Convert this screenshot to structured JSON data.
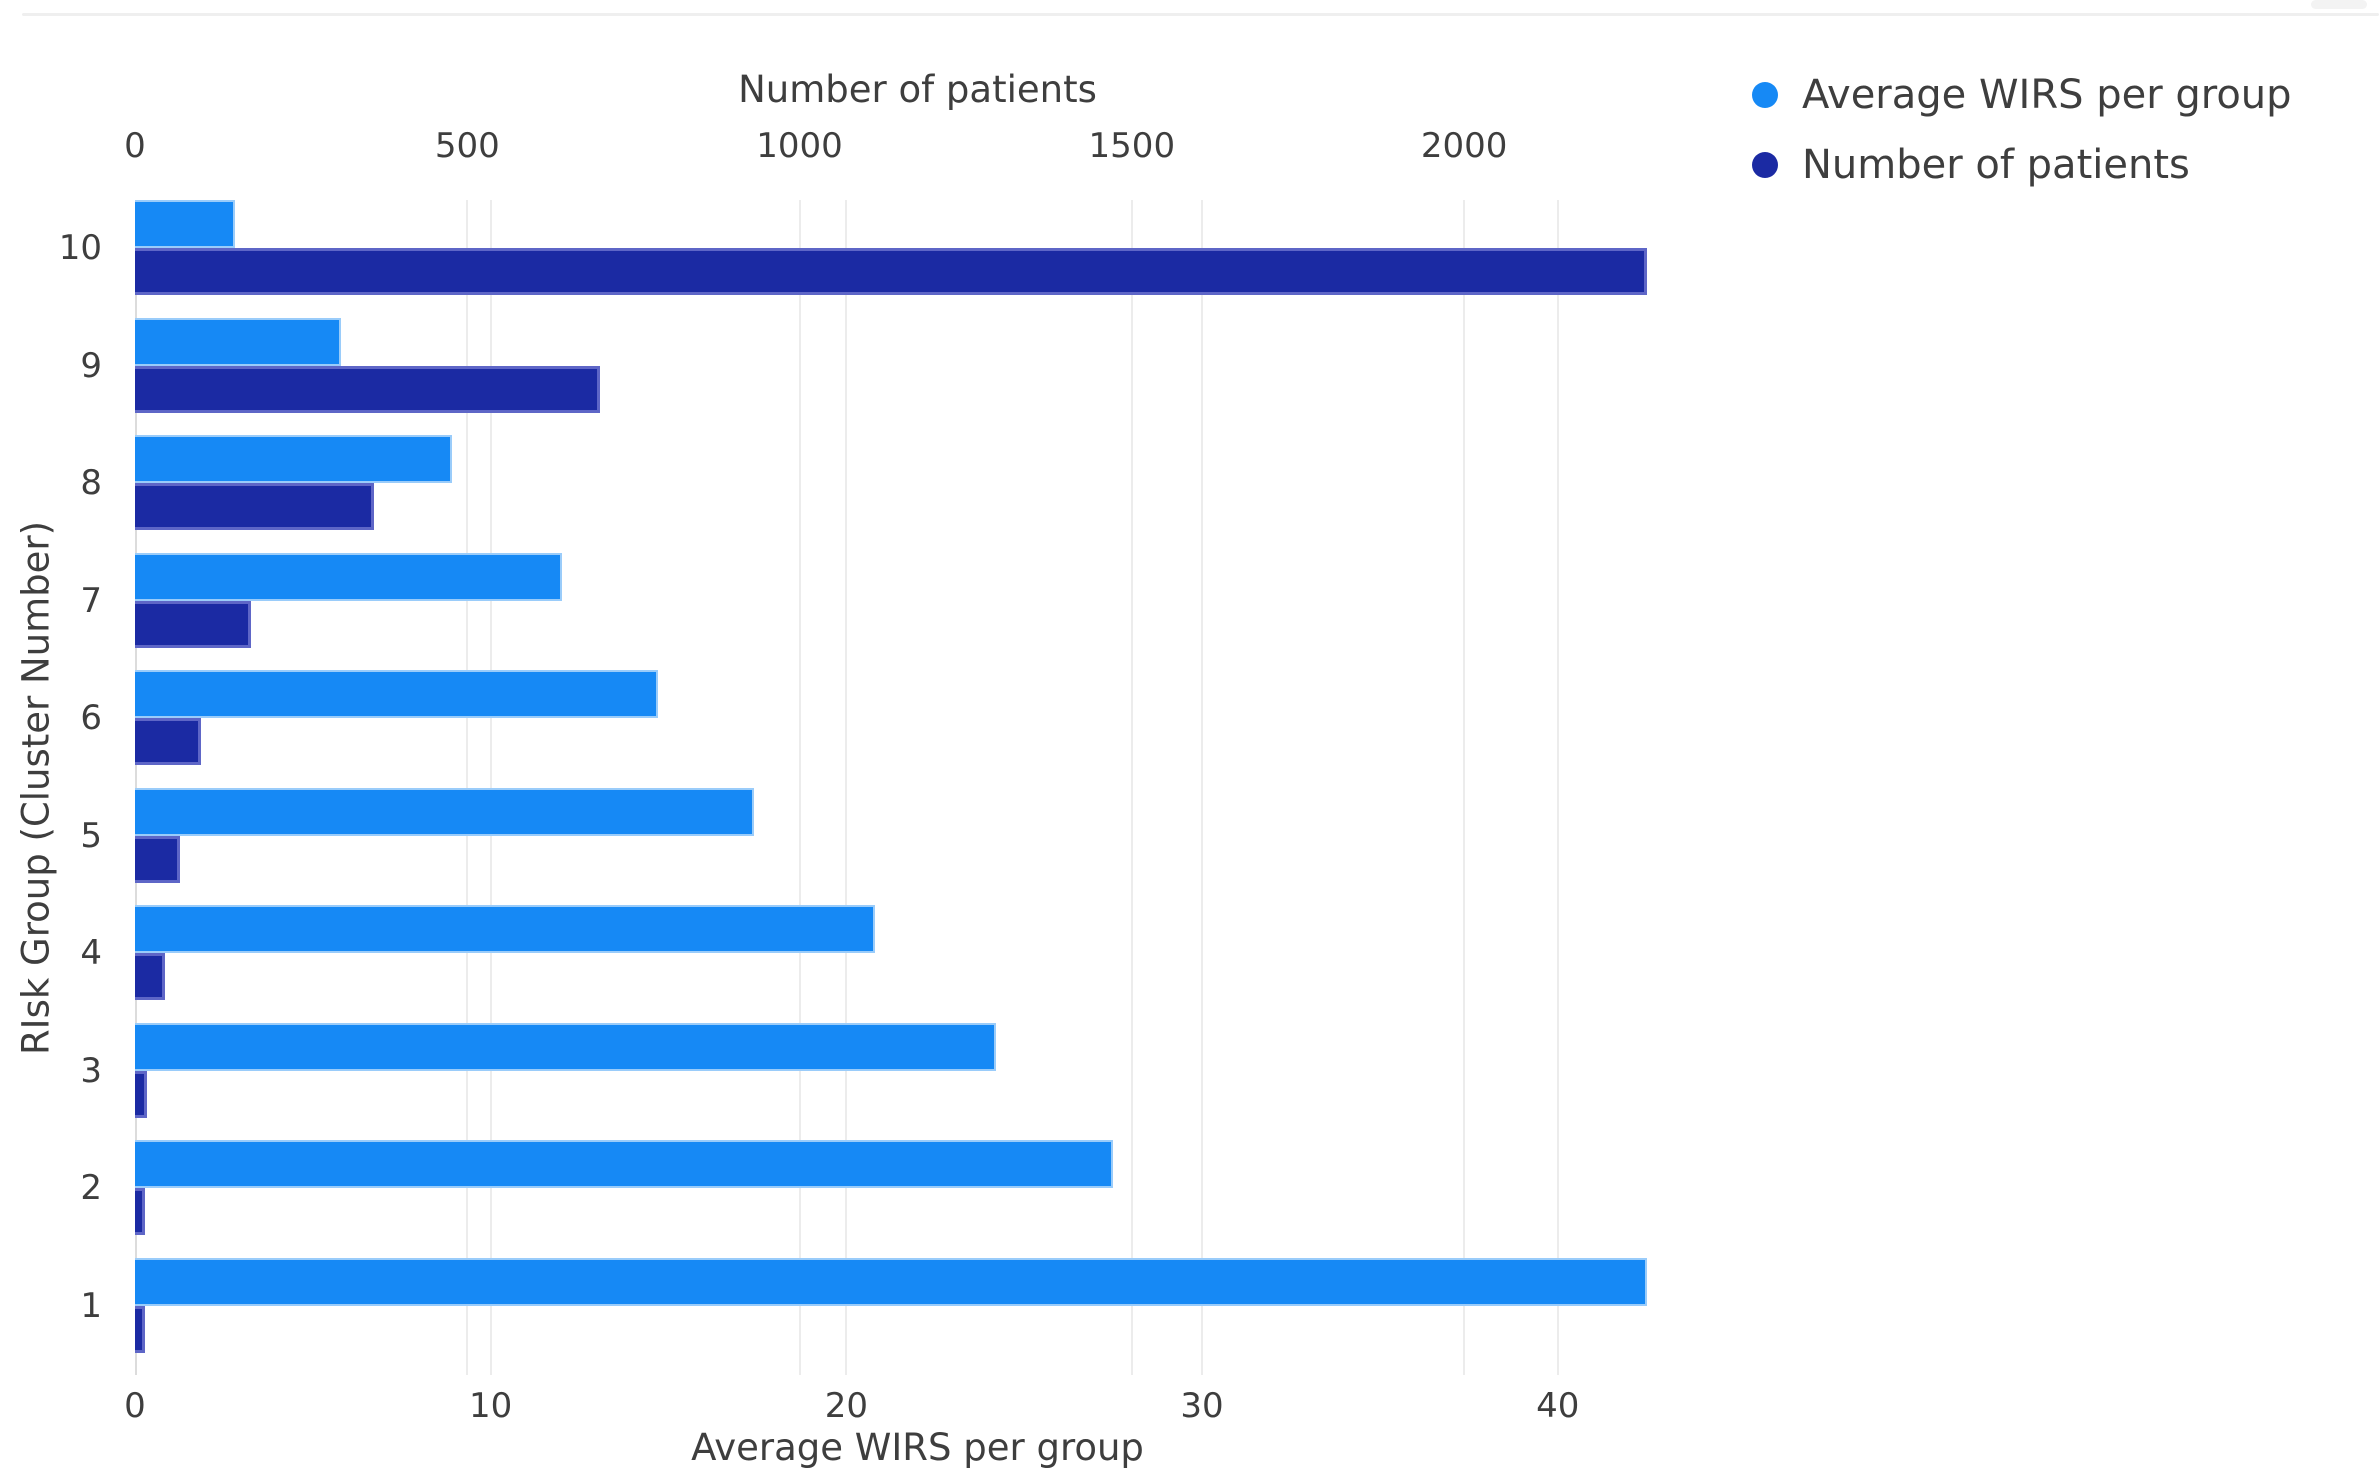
{
  "legend": {
    "items": [
      {
        "label": "Average WIRS per group",
        "color": "#1689f5"
      },
      {
        "label": "Number of patients",
        "color": "#1b2aa3"
      }
    ]
  },
  "chart_data": {
    "type": "bar",
    "orientation": "horizontal",
    "title": "",
    "ylabel": "RIsk Group (Cluster Number)",
    "categories": [
      "10",
      "9",
      "8",
      "7",
      "6",
      "5",
      "4",
      "3",
      "2",
      "1"
    ],
    "series": [
      {
        "name": "Average WIRS per group",
        "axis": "bottom",
        "color": "#1689f5",
        "values": [
          2.8,
          5.8,
          8.9,
          12.0,
          14.7,
          17.4,
          20.8,
          24.2,
          27.5,
          42.5
        ]
      },
      {
        "name": "Number of patients",
        "axis": "top",
        "color": "#1b2aa3",
        "values": [
          2275,
          700,
          360,
          175,
          100,
          68,
          45,
          18,
          15,
          15
        ]
      }
    ],
    "top_axis": {
      "title": "Number of patients",
      "ticks": [
        0,
        500,
        1000,
        1500,
        2000
      ],
      "max": 2355
    },
    "bottom_axis": {
      "title": "Average WIRS per group",
      "ticks": [
        0,
        10,
        20,
        30,
        40
      ],
      "max": 44
    },
    "grid": true,
    "legend_position": "top-right"
  }
}
